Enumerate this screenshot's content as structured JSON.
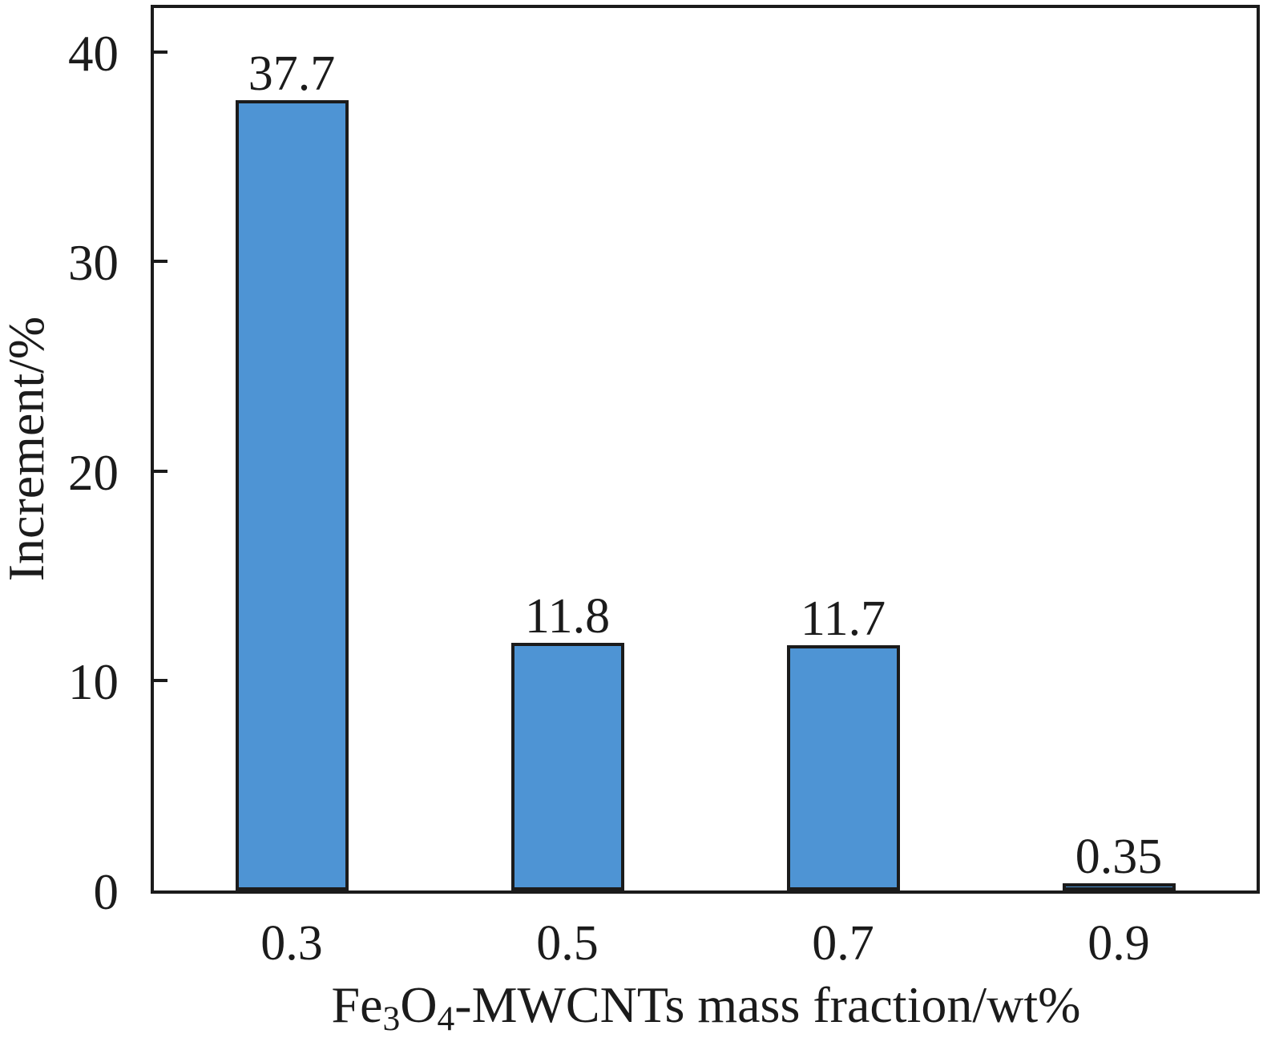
{
  "chart_data": {
    "type": "bar",
    "categories": [
      "0.3",
      "0.5",
      "0.7",
      "0.9"
    ],
    "values": [
      37.7,
      11.8,
      11.7,
      0.35
    ],
    "value_labels": [
      "37.7",
      "11.8",
      "11.7",
      "0.35"
    ],
    "xlabel_plain": "Fe3O4-MWCNTs mass fraction/wt%",
    "xlabel_segments": [
      {
        "text": "Fe"
      },
      {
        "text": "3",
        "sub": true
      },
      {
        "text": "O"
      },
      {
        "text": "4",
        "sub": true
      },
      {
        "text": "-MWCNTs mass fraction/wt%"
      }
    ],
    "ylabel": "Increment/%",
    "ylim": [
      0,
      42.1
    ],
    "yticks": [
      0,
      10,
      20,
      30,
      40
    ],
    "grid": false,
    "legend": null,
    "colors": {
      "bar_fill": "#4e94d4",
      "bar_edge": "#1b1b1b",
      "axis": "#1b1b1b",
      "background": "#ffffff",
      "text": "#1b1b1b"
    }
  }
}
